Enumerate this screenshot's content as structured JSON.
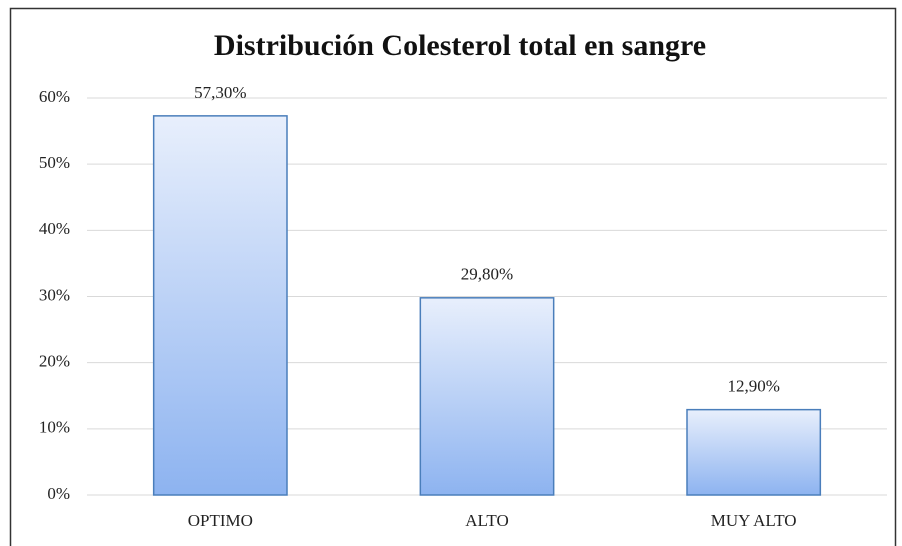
{
  "chart_data": {
    "type": "bar",
    "title": "Distribución  Colesterol  total  en  sangre",
    "categories": [
      "OPTIMO",
      "ALTO",
      "MUY ALTO"
    ],
    "values": [
      57.3,
      29.8,
      12.9
    ],
    "value_labels": [
      "57,30%",
      "29,80%",
      "12,90%"
    ],
    "color": "#4a7ebb",
    "ylim": [
      0,
      60
    ],
    "yticks": [
      {
        "value": 0,
        "label": "0%"
      },
      {
        "value": 10,
        "label": "10%"
      },
      {
        "value": 20,
        "label": "20%"
      },
      {
        "value": 30,
        "label": "30%"
      },
      {
        "value": 40,
        "label": "40%"
      },
      {
        "value": 50,
        "label": "50%"
      },
      {
        "value": 60,
        "label": "60%"
      }
    ],
    "grid": true
  }
}
